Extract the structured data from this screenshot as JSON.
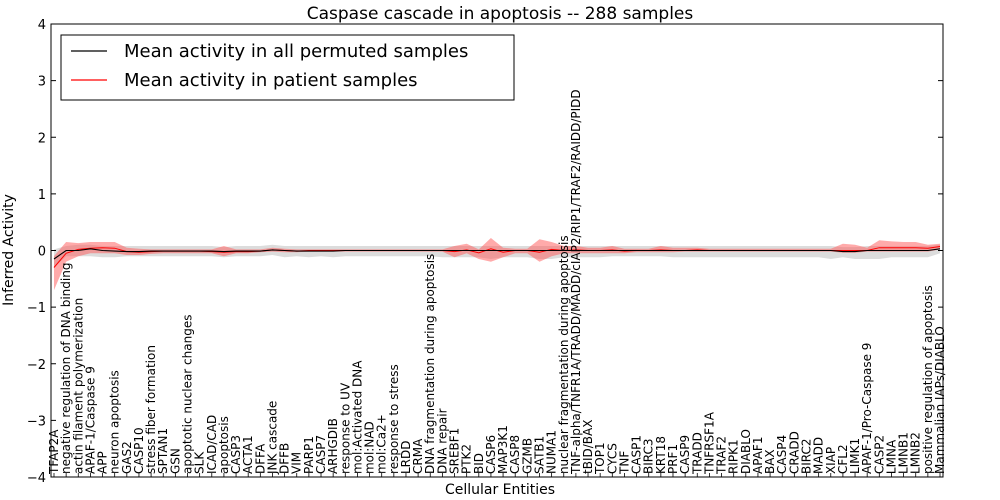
{
  "chart_data": {
    "type": "line",
    "title": "Caspase cascade in apoptosis -- 288 samples",
    "xlabel": "Cellular Entities",
    "ylabel": "Inferred Activity",
    "ylim": [
      -4,
      4
    ],
    "yticks": [
      -4,
      -3,
      -2,
      -1,
      0,
      1,
      2,
      3,
      4
    ],
    "legend_position": "upper-left",
    "colors": {
      "permuted": "#000000",
      "patient": "#ff0000",
      "permuted_band": "#c0c0c0",
      "patient_band": "#ff5555"
    },
    "categories": [
      "TFAP2A",
      "negative regulation of DNA binding",
      "actin filament polymerization",
      "APAF-1/Caspase 9",
      "APP",
      "neuron apoptosis",
      "GAS2",
      "CASP10",
      "stress fiber formation",
      "SPTAN1",
      "GSN",
      "apoptotic nuclear changes",
      "SLK",
      "ICAD/CAD",
      "apoptosis",
      "CASP3",
      "ACTA1",
      "DFFA",
      "JNK cascade",
      "DFFB",
      "VIM",
      "PARP1",
      "CASP7",
      "ARHGDIB",
      "response to UV",
      "mol:Activated DNA",
      "mol:NAD",
      "mol:Ca2+",
      "response to stress",
      "LRDD",
      "CRMA",
      "DNA fragmentation during apoptosis",
      "DNA repair",
      "SREBF1",
      "PTK2",
      "BID",
      "CASP6",
      "MAP3K1",
      "CASP8",
      "GZMB",
      "SATB1",
      "NUMA1",
      "nuclear fragmentation during apoptosis",
      "TNF-alpha/TNFR1A/TRADD/MADD/cIAP2/RIP1/TRAF2/RAIDD/PIDD",
      "tBID/BAX",
      "TOP1",
      "CYCS",
      "TNF",
      "CASP1",
      "BIRC3",
      "KRT18",
      "PRF1",
      "CASP9",
      "TRADD",
      "TNFRSF1A",
      "TRAF2",
      "RIPK1",
      "DIABLO",
      "APAF1",
      "BAX",
      "CASP4",
      "CRADD",
      "BIRC2",
      "MADD",
      "XIAP",
      "CFL2",
      "LIMK1",
      "APAF-1/Pro-Caspase 9",
      "CASP2",
      "LMNA",
      "LMNB1",
      "LMNB2",
      "positive regulation of apoptosis",
      "Mammalian IAPs/DIABLO"
    ],
    "series": [
      {
        "name": "Mean activity in all permuted samples",
        "color": "#000000",
        "values": [
          -0.15,
          0.0,
          0.0,
          0.03,
          0.0,
          -0.01,
          -0.02,
          -0.02,
          -0.01,
          -0.01,
          -0.01,
          -0.01,
          -0.01,
          -0.01,
          -0.02,
          -0.01,
          -0.01,
          -0.01,
          0.01,
          0.0,
          -0.01,
          -0.01,
          -0.01,
          -0.01,
          0.0,
          0.0,
          0.0,
          0.0,
          0.0,
          0.0,
          0.0,
          0.0,
          0.0,
          0.0,
          0.0,
          0.0,
          0.0,
          0.0,
          0.0,
          0.0,
          0.0,
          0.0,
          0.0,
          0.0,
          0.0,
          0.0,
          0.0,
          0.0,
          0.0,
          0.0,
          0.0,
          0.0,
          0.0,
          0.0,
          0.0,
          0.0,
          0.0,
          0.0,
          0.0,
          0.0,
          0.0,
          0.0,
          0.0,
          0.0,
          0.0,
          -0.02,
          -0.02,
          0.0,
          0.0,
          0.0,
          0.0,
          0.0,
          0.0,
          0.03
        ],
        "band": {
          "lower": [
            -0.3,
            -0.1,
            -0.1,
            -0.1,
            -0.12,
            -0.12,
            -0.1,
            -0.1,
            -0.1,
            -0.1,
            -0.1,
            -0.1,
            -0.1,
            -0.1,
            -0.12,
            -0.1,
            -0.1,
            -0.1,
            -0.08,
            -0.12,
            -0.1,
            -0.12,
            -0.1,
            -0.12,
            -0.1,
            -0.1,
            -0.1,
            -0.1,
            -0.1,
            -0.1,
            -0.1,
            -0.1,
            -0.12,
            -0.12,
            -0.12,
            -0.12,
            -0.15,
            -0.12,
            -0.12,
            -0.12,
            -0.15,
            -0.15,
            -0.12,
            -0.12,
            -0.12,
            -0.12,
            -0.1,
            -0.1,
            -0.1,
            -0.1,
            -0.1,
            -0.12,
            -0.12,
            -0.12,
            -0.12,
            -0.12,
            -0.12,
            -0.12,
            -0.12,
            -0.12,
            -0.12,
            -0.12,
            -0.12,
            -0.12,
            -0.15,
            -0.12,
            -0.15,
            -0.15,
            -0.15,
            -0.12,
            -0.12,
            -0.12,
            -0.12,
            -0.05
          ],
          "upper": [
            0.02,
            0.08,
            0.1,
            0.1,
            0.08,
            0.08,
            0.08,
            0.08,
            0.08,
            0.08,
            0.08,
            0.08,
            0.08,
            0.08,
            0.06,
            0.08,
            0.08,
            0.08,
            0.1,
            0.08,
            0.08,
            0.08,
            0.08,
            0.08,
            0.08,
            0.08,
            0.08,
            0.08,
            0.08,
            0.08,
            0.08,
            0.08,
            0.08,
            0.08,
            0.08,
            0.08,
            0.08,
            0.08,
            0.08,
            0.08,
            0.08,
            0.08,
            0.08,
            0.08,
            0.08,
            0.08,
            0.08,
            0.08,
            0.08,
            0.08,
            0.08,
            0.08,
            0.08,
            0.08,
            0.08,
            0.08,
            0.08,
            0.08,
            0.08,
            0.08,
            0.08,
            0.08,
            0.08,
            0.08,
            0.08,
            0.06,
            0.06,
            0.08,
            0.08,
            0.08,
            0.08,
            0.08,
            0.08,
            0.1
          ]
        }
      },
      {
        "name": "Mean activity in patient samples",
        "color": "#ff0000",
        "values": [
          -0.3,
          -0.05,
          0.02,
          0.04,
          0.05,
          0.04,
          -0.02,
          -0.03,
          -0.02,
          -0.01,
          -0.01,
          -0.01,
          -0.01,
          -0.02,
          -0.03,
          -0.02,
          -0.02,
          -0.01,
          0.01,
          0.0,
          -0.01,
          0.0,
          0.0,
          0.0,
          0.0,
          0.0,
          0.0,
          0.0,
          0.0,
          0.0,
          0.0,
          0.0,
          0.0,
          -0.02,
          0.01,
          -0.04,
          0.03,
          -0.03,
          0.0,
          0.0,
          -0.03,
          0.02,
          0.0,
          0.01,
          0.0,
          0.0,
          0.01,
          -0.01,
          0.0,
          0.0,
          0.01,
          0.0,
          0.0,
          0.01,
          0.0,
          0.0,
          0.0,
          0.0,
          0.0,
          0.0,
          0.0,
          0.0,
          0.0,
          0.0,
          0.0,
          0.0,
          0.0,
          0.0,
          0.05,
          0.05,
          0.05,
          0.05,
          0.04,
          0.07
        ],
        "band": {
          "lower": [
            -0.7,
            -0.2,
            -0.1,
            -0.05,
            -0.05,
            -0.05,
            -0.08,
            -0.08,
            -0.06,
            -0.05,
            -0.05,
            -0.05,
            -0.05,
            -0.05,
            -0.1,
            -0.05,
            -0.05,
            -0.03,
            -0.02,
            -0.03,
            -0.03,
            -0.02,
            -0.02,
            -0.02,
            -0.02,
            -0.02,
            -0.02,
            -0.02,
            -0.02,
            -0.02,
            -0.02,
            -0.02,
            -0.02,
            -0.12,
            -0.05,
            -0.15,
            -0.2,
            -0.12,
            -0.05,
            -0.05,
            -0.2,
            -0.1,
            -0.05,
            -0.05,
            -0.05,
            -0.05,
            -0.05,
            -0.05,
            -0.03,
            -0.03,
            -0.03,
            -0.03,
            -0.02,
            -0.02,
            -0.02,
            -0.02,
            -0.02,
            -0.02,
            -0.02,
            -0.02,
            -0.02,
            -0.02,
            -0.02,
            -0.02,
            -0.02,
            -0.04,
            -0.04,
            -0.02,
            -0.02,
            -0.02,
            -0.02,
            -0.02,
            -0.02,
            0.02
          ],
          "upper": [
            -0.1,
            0.15,
            0.13,
            0.15,
            0.15,
            0.15,
            0.05,
            0.03,
            0.02,
            0.02,
            0.02,
            0.02,
            0.02,
            0.02,
            0.08,
            0.02,
            0.02,
            0.02,
            0.05,
            0.03,
            0.02,
            0.02,
            0.02,
            0.02,
            0.02,
            0.02,
            0.02,
            0.02,
            0.02,
            0.02,
            0.02,
            0.02,
            0.02,
            0.08,
            0.12,
            0.02,
            0.22,
            0.05,
            0.03,
            0.03,
            0.2,
            0.15,
            0.08,
            0.08,
            0.05,
            0.05,
            0.08,
            0.03,
            0.03,
            0.03,
            0.08,
            0.05,
            0.05,
            0.05,
            0.03,
            0.03,
            0.03,
            0.03,
            0.03,
            0.03,
            0.03,
            0.03,
            0.03,
            0.03,
            0.03,
            0.12,
            0.1,
            0.05,
            0.18,
            0.16,
            0.15,
            0.15,
            0.1,
            0.12
          ]
        }
      }
    ]
  }
}
